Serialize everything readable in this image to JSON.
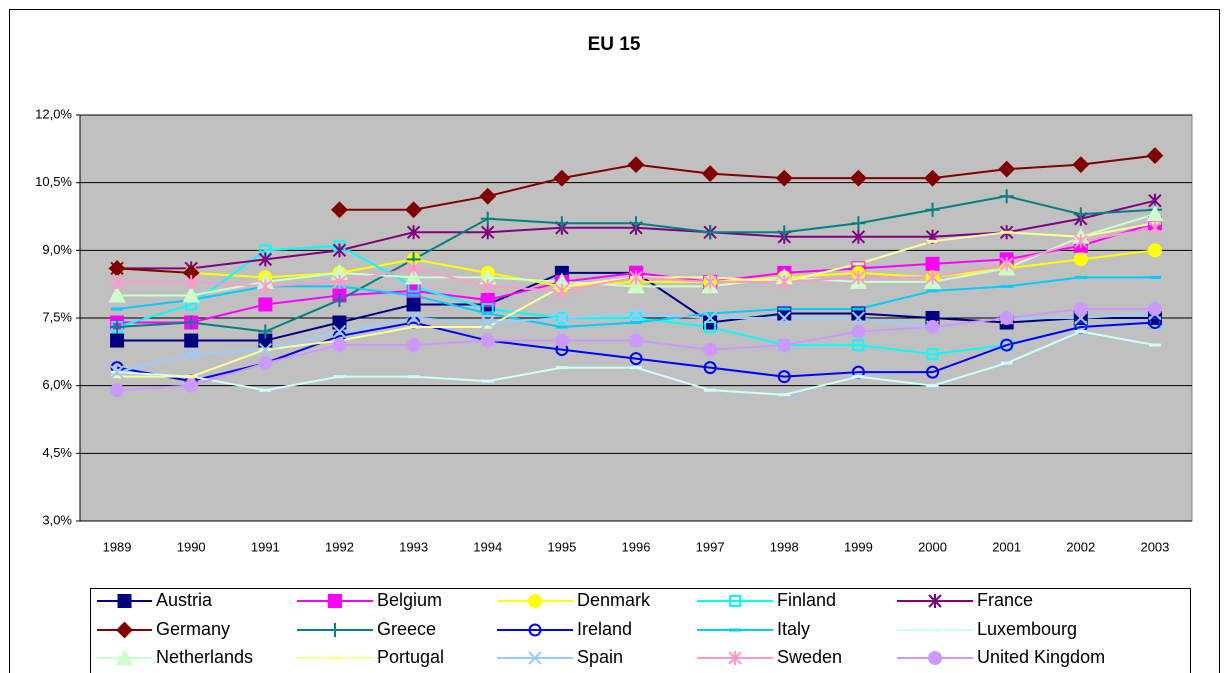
{
  "chart_data": {
    "type": "line",
    "title": "EU 15",
    "categories": [
      "1989",
      "1990",
      "1991",
      "1992",
      "1993",
      "1994",
      "1995",
      "1996",
      "1997",
      "1998",
      "1999",
      "2000",
      "2001",
      "2002",
      "2003"
    ],
    "ylim": [
      3,
      12
    ],
    "yticks": [
      {
        "value": 3,
        "label": "3,0%"
      },
      {
        "value": 4.5,
        "label": "4,5%"
      },
      {
        "value": 6,
        "label": "6,0%"
      },
      {
        "value": 7.5,
        "label": "7,5%"
      },
      {
        "value": 9,
        "label": "9,0%"
      },
      {
        "value": 10.5,
        "label": "10,5%"
      },
      {
        "value": 12,
        "label": "12,0%"
      }
    ],
    "grid": true,
    "legend": "bottom",
    "series": [
      {
        "name": "Austria",
        "color": "#000080",
        "marker": "square",
        "values": [
          7.0,
          7.0,
          7.0,
          7.4,
          7.8,
          7.8,
          8.5,
          8.5,
          7.4,
          7.6,
          7.6,
          7.5,
          7.4,
          7.5,
          7.5
        ]
      },
      {
        "name": "Belgium",
        "color": "#ff00ff",
        "marker": "square",
        "values": [
          7.4,
          7.4,
          7.8,
          8.0,
          8.1,
          7.9,
          8.3,
          8.5,
          8.3,
          8.5,
          8.6,
          8.7,
          8.8,
          9.1,
          9.6
        ]
      },
      {
        "name": "Denmark",
        "color": "#ffff00",
        "marker": "circle",
        "values": [
          8.6,
          8.5,
          8.4,
          8.5,
          8.8,
          8.5,
          8.2,
          8.3,
          8.3,
          8.4,
          8.5,
          8.4,
          8.6,
          8.8,
          9.0
        ]
      },
      {
        "name": "Finland",
        "color": "#00ffff",
        "marker": "open-square",
        "values": [
          7.3,
          7.8,
          9.0,
          9.1,
          8.2,
          7.7,
          7.5,
          7.5,
          7.3,
          6.9,
          6.9,
          6.7,
          6.9,
          7.3,
          7.4
        ]
      },
      {
        "name": "France",
        "color": "#800080",
        "marker": "asterisk",
        "values": [
          8.6,
          8.6,
          8.8,
          9.0,
          9.4,
          9.4,
          9.5,
          9.5,
          9.4,
          9.3,
          9.3,
          9.3,
          9.4,
          9.7,
          10.1
        ]
      },
      {
        "name": "Germany",
        "color": "#800000",
        "marker": "diamond",
        "values": [
          8.6,
          8.5,
          null,
          9.9,
          9.9,
          10.2,
          10.6,
          10.9,
          10.7,
          10.6,
          10.6,
          10.6,
          10.8,
          10.9,
          11.1
        ]
      },
      {
        "name": "Greece",
        "color": "#008080",
        "marker": "plus",
        "values": [
          7.3,
          7.4,
          7.2,
          7.9,
          8.8,
          9.7,
          9.6,
          9.6,
          9.4,
          9.4,
          9.6,
          9.9,
          10.2,
          9.8,
          9.9
        ]
      },
      {
        "name": "Ireland",
        "color": "#0000ff",
        "marker": "open-circle",
        "values": [
          6.4,
          6.1,
          6.5,
          7.1,
          7.4,
          7.0,
          6.8,
          6.6,
          6.4,
          6.2,
          6.3,
          6.3,
          6.9,
          7.3,
          7.4
        ]
      },
      {
        "name": "Italy",
        "color": "#00ccff",
        "marker": "dash",
        "values": [
          7.7,
          7.9,
          8.2,
          8.2,
          8.0,
          7.6,
          7.3,
          7.4,
          7.6,
          7.7,
          7.7,
          8.1,
          8.2,
          8.4,
          8.4
        ]
      },
      {
        "name": "Luxembourg",
        "color": "#ccffff",
        "marker": "dash",
        "values": [
          6.3,
          6.2,
          5.9,
          6.2,
          6.2,
          6.1,
          6.4,
          6.4,
          5.9,
          5.8,
          6.2,
          6.0,
          6.5,
          7.2,
          6.9
        ]
      },
      {
        "name": "Netherlands",
        "color": "#ccffcc",
        "marker": "triangle",
        "values": [
          8.0,
          8.0,
          8.3,
          8.5,
          8.4,
          8.4,
          8.3,
          8.2,
          8.2,
          8.4,
          8.3,
          8.3,
          8.6,
          9.3,
          9.8
        ]
      },
      {
        "name": "Portugal",
        "color": "#ffff99",
        "marker": "dash",
        "values": [
          6.2,
          6.2,
          6.8,
          7.0,
          7.3,
          7.3,
          8.2,
          8.4,
          8.4,
          8.3,
          8.7,
          9.2,
          9.4,
          9.3,
          9.6
        ]
      },
      {
        "name": "Spain",
        "color": "#99ccff",
        "marker": "x",
        "values": [
          6.3,
          6.7,
          6.8,
          7.2,
          7.5,
          7.4,
          7.5,
          7.6,
          7.5,
          7.5,
          7.5,
          7.3,
          7.5,
          7.5,
          7.6
        ]
      },
      {
        "name": "Sweden",
        "color": "#ff99cc",
        "marker": "asterisk",
        "values": [
          8.3,
          8.3,
          8.2,
          8.3,
          8.6,
          8.2,
          8.1,
          8.4,
          8.3,
          8.3,
          8.4,
          8.4,
          8.7,
          9.2,
          9.5
        ]
      },
      {
        "name": "United Kingdom",
        "color": "#cc99ff",
        "marker": "circle",
        "values": [
          5.9,
          6.0,
          6.5,
          6.9,
          6.9,
          7.0,
          7.0,
          7.0,
          6.8,
          6.9,
          7.2,
          7.3,
          7.5,
          7.7,
          7.7
        ]
      }
    ]
  }
}
